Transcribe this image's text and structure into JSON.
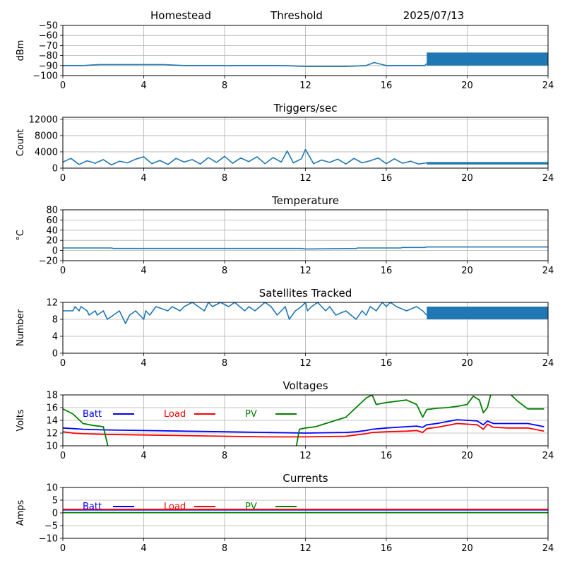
{
  "header": {
    "site": "Homestead",
    "mode": "Threshold",
    "date": "2025/07/13"
  },
  "colors": {
    "series": "#1f77b4",
    "batt": "#0000ff",
    "load": "#ff0000",
    "pv": "#008000",
    "grid": "#b0b0b0"
  },
  "chart_data": [
    {
      "id": "signal",
      "type": "line",
      "title": "",
      "xlabel": "",
      "ylabel": "dBm",
      "xlim": [
        0,
        24
      ],
      "ylim": [
        -100,
        -50
      ],
      "xticks": [
        0,
        4,
        8,
        12,
        16,
        20,
        24
      ],
      "yticks": [
        -100,
        -90,
        -80,
        -70,
        -60,
        -50
      ],
      "grid": true,
      "series": [
        {
          "x": [
            0,
            1,
            1.8,
            2,
            3,
            4,
            5,
            6,
            7,
            8,
            9,
            10,
            11,
            12,
            13,
            14,
            15,
            15.4,
            15.8,
            16,
            17,
            17.5,
            17.9,
            18
          ],
          "y": [
            -90,
            -90,
            -89,
            -89,
            -89,
            -89,
            -89,
            -90,
            -90,
            -90,
            -90,
            -90,
            -90,
            -91,
            -91,
            -91,
            -90,
            -87,
            -89,
            -90,
            -90,
            -90,
            -90,
            -88
          ]
        }
      ],
      "band": {
        "x": [
          18,
          24
        ],
        "low": -90,
        "high": -77
      }
    },
    {
      "id": "triggers",
      "type": "line",
      "title": "Triggers/sec",
      "xlabel": "",
      "ylabel": "Count",
      "xlim": [
        0,
        24
      ],
      "ylim": [
        0,
        12500
      ],
      "xticks": [
        0,
        4,
        8,
        12,
        16,
        20,
        24
      ],
      "yticks": [
        0,
        4000,
        8000,
        12000
      ],
      "grid": true,
      "series": [
        {
          "x": [
            0,
            0.4,
            0.8,
            1.2,
            1.6,
            2,
            2.4,
            2.8,
            3.2,
            3.6,
            4,
            4.4,
            4.8,
            5.2,
            5.6,
            6,
            6.4,
            6.8,
            7.2,
            7.6,
            8,
            8.4,
            8.8,
            9.2,
            9.6,
            10,
            10.4,
            10.8,
            11.1,
            11.4,
            11.8,
            12,
            12.4,
            12.8,
            13.2,
            13.6,
            14,
            14.4,
            14.8,
            15.2,
            15.6,
            16,
            16.4,
            16.8,
            17.2,
            17.6,
            18
          ],
          "y": [
            1500,
            2400,
            900,
            1800,
            1200,
            2100,
            800,
            1700,
            1300,
            2200,
            2800,
            1100,
            1900,
            900,
            2400,
            1500,
            2100,
            1000,
            2600,
            1400,
            2900,
            1200,
            2500,
            1600,
            2800,
            1100,
            2600,
            1500,
            4200,
            1300,
            2300,
            4600,
            1100,
            2000,
            1400,
            2200,
            1000,
            2400,
            1300,
            1800,
            2500,
            1100,
            2300,
            1200,
            1700,
            1000,
            1300
          ]
        }
      ],
      "band": {
        "x": [
          18,
          24
        ],
        "low": 900,
        "high": 1500
      }
    },
    {
      "id": "temperature",
      "type": "line",
      "title": "Temperature",
      "xlabel": "",
      "ylabel": "°C",
      "xlim": [
        0,
        24
      ],
      "ylim": [
        -20,
        80
      ],
      "xticks": [
        0,
        4,
        8,
        12,
        16,
        20,
        24
      ],
      "yticks": [
        -20,
        0,
        20,
        40,
        60,
        80
      ],
      "grid": true,
      "series": [
        {
          "x": [
            0,
            2.4,
            2.5,
            11.8,
            12,
            14.5,
            14.6,
            16.7,
            16.8,
            17.9,
            18,
            24
          ],
          "y": [
            5,
            5,
            4,
            4,
            3,
            4,
            5,
            5,
            6,
            6,
            7,
            7
          ]
        }
      ]
    },
    {
      "id": "satellites",
      "type": "line",
      "title": "Satellites Tracked",
      "xlabel": "",
      "ylabel": "Number",
      "xlim": [
        0,
        24
      ],
      "ylim": [
        0,
        12
      ],
      "xticks": [
        0,
        4,
        8,
        12,
        16,
        20,
        24
      ],
      "yticks": [
        0,
        4,
        8,
        12
      ],
      "grid": true,
      "series": [
        {
          "x": [
            0,
            0.5,
            0.6,
            0.8,
            0.9,
            1.2,
            1.3,
            1.6,
            1.7,
            2,
            2.2,
            2.5,
            2.8,
            3,
            3.1,
            3.3,
            3.6,
            3.8,
            4,
            4.1,
            4.3,
            4.6,
            5.2,
            5.4,
            5.8,
            6,
            6.4,
            6.7,
            7,
            7.2,
            7.4,
            7.8,
            8.2,
            8.5,
            9,
            9.2,
            9.5,
            10,
            10.3,
            10.6,
            11,
            11.2,
            11.5,
            11.8,
            12,
            12.1,
            12.3,
            12.6,
            13,
            13.2,
            13.5,
            14,
            14.5,
            14.8,
            15,
            15.2,
            15.5,
            15.8,
            16,
            16.2,
            16.5,
            17,
            17.5,
            17.8,
            18
          ],
          "y": [
            10,
            10,
            11,
            10,
            11,
            10,
            9,
            10,
            9,
            10,
            8,
            9,
            10,
            8,
            7,
            9,
            10,
            9,
            8,
            10,
            9,
            11,
            10,
            11,
            10,
            11,
            12,
            11,
            10,
            12,
            11,
            12,
            11,
            12,
            10,
            11,
            10,
            12,
            11,
            9,
            11,
            8,
            10,
            11,
            12,
            10,
            11,
            12,
            10,
            11,
            9,
            10,
            8,
            10,
            9,
            11,
            10,
            12,
            11,
            12,
            11,
            10,
            11,
            10,
            9
          ]
        }
      ],
      "band": {
        "x": [
          18,
          24
        ],
        "low": 8,
        "high": 11
      }
    },
    {
      "id": "voltages",
      "type": "line",
      "title": "Voltages",
      "xlabel": "",
      "ylabel": "Volts",
      "xlim": [
        0,
        24
      ],
      "ylim": [
        10,
        18
      ],
      "xticks": [
        0,
        4,
        8,
        12,
        16,
        20,
        24
      ],
      "yticks": [
        10,
        12,
        14,
        16,
        18
      ],
      "grid": true,
      "legend": "top-left, horizontal",
      "series": [
        {
          "name": "Batt",
          "x": [
            0,
            0.5,
            1,
            2,
            4,
            6,
            8,
            10,
            12,
            14,
            14.5,
            15,
            15.3,
            16,
            17,
            17.5,
            17.8,
            18,
            18.5,
            19,
            19.5,
            20,
            20.5,
            20.8,
            21,
            21.3,
            22,
            23,
            23.8
          ],
          "y": [
            12.8,
            12.7,
            12.6,
            12.5,
            12.4,
            12.3,
            12.2,
            12.1,
            12.0,
            12.1,
            12.2,
            12.4,
            12.6,
            12.8,
            13.0,
            13.1,
            12.9,
            13.3,
            13.5,
            13.8,
            14.1,
            14.0,
            13.9,
            13.3,
            13.9,
            13.5,
            13.5,
            13.5,
            13.0
          ]
        },
        {
          "name": "Load",
          "x": [
            0,
            0.5,
            1,
            2,
            4,
            6,
            8,
            10,
            12,
            14,
            14.5,
            15,
            15.3,
            16,
            17,
            17.5,
            17.8,
            18,
            18.5,
            19,
            19.5,
            20,
            20.5,
            20.8,
            21,
            21.3,
            22,
            23,
            23.8
          ],
          "y": [
            12.2,
            12.0,
            11.9,
            11.8,
            11.7,
            11.6,
            11.5,
            11.4,
            11.4,
            11.5,
            11.7,
            11.9,
            12.1,
            12.2,
            12.3,
            12.4,
            12.1,
            12.7,
            12.9,
            13.2,
            13.5,
            13.4,
            13.3,
            12.6,
            13.4,
            12.9,
            12.8,
            12.8,
            12.3
          ]
        },
        {
          "name": "PV",
          "x": [
            0,
            0.5,
            1,
            1.5,
            2,
            2.3,
            2.5,
            11.5,
            11.7,
            12,
            12.5,
            13,
            13.5,
            14,
            14.5,
            15,
            15.3,
            15.5,
            16,
            16.5,
            17,
            17.5,
            17.8,
            18,
            18.5,
            19,
            19.5,
            20,
            20.3,
            20.6,
            20.8,
            21,
            21.2,
            21.5,
            22,
            22.5,
            23,
            23.5,
            23.8
          ],
          "y": [
            15.8,
            15.0,
            13.5,
            13.2,
            13.0,
            9.0,
            9.0,
            9.0,
            12.6,
            12.8,
            13.0,
            13.5,
            14.0,
            14.5,
            16.0,
            17.5,
            18.0,
            16.5,
            16.8,
            17.0,
            17.2,
            16.5,
            14.5,
            15.7,
            15.9,
            16.0,
            16.2,
            16.5,
            17.8,
            17.2,
            15.2,
            16.0,
            18.5,
            18.5,
            18.5,
            17.0,
            15.8,
            15.8,
            15.8
          ]
        }
      ]
    },
    {
      "id": "currents",
      "type": "line",
      "title": "Currents",
      "xlabel": "",
      "ylabel": "Amps",
      "xlim": [
        0,
        24
      ],
      "ylim": [
        -10,
        10
      ],
      "xticks": [
        0,
        4,
        8,
        12,
        16,
        20,
        24
      ],
      "yticks": [
        -10,
        -5,
        0,
        5,
        10
      ],
      "grid": true,
      "legend": "top-left, horizontal",
      "series": [
        {
          "name": "Batt",
          "x": [
            0,
            24
          ],
          "y": [
            1.2,
            1.2
          ]
        },
        {
          "name": "Load",
          "x": [
            0,
            24
          ],
          "y": [
            1.4,
            1.4
          ]
        },
        {
          "name": "PV",
          "x": [
            0,
            24
          ],
          "y": [
            0.1,
            0.1
          ]
        }
      ]
    }
  ]
}
